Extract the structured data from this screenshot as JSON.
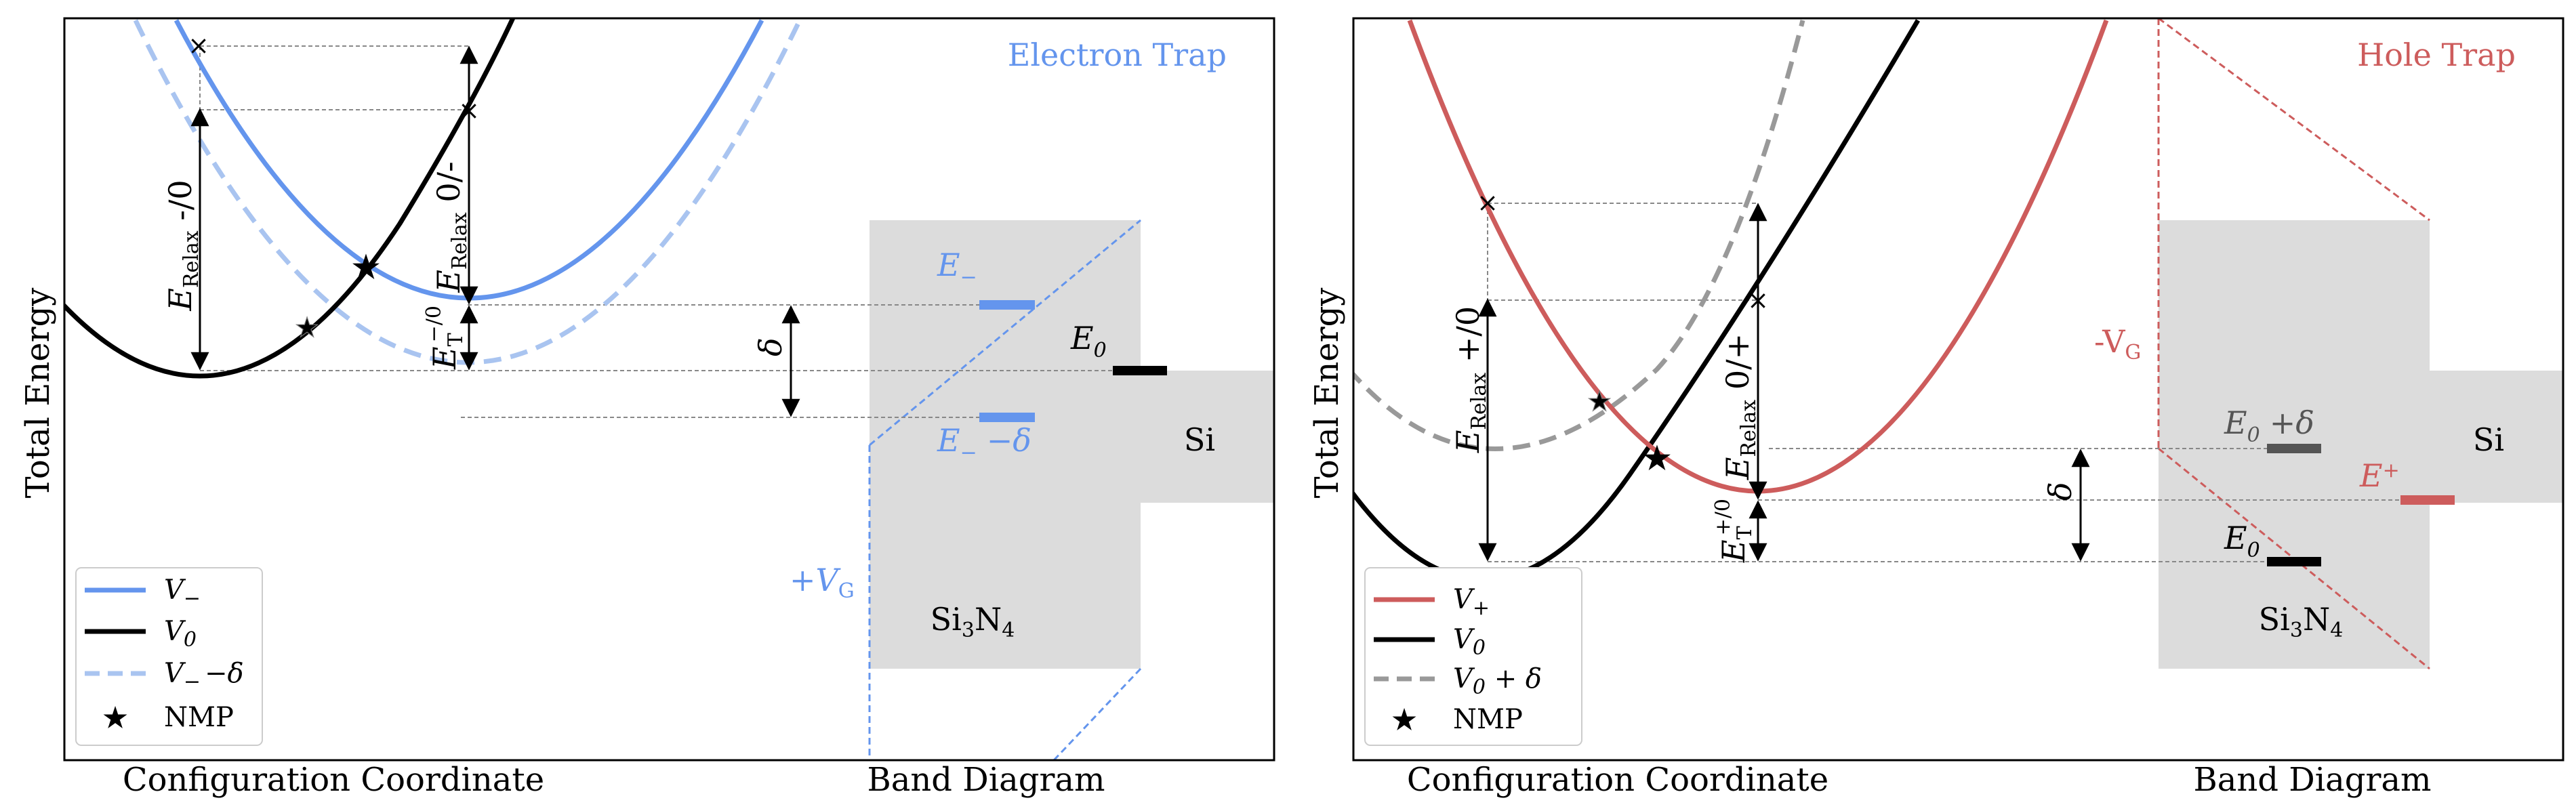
{
  "colors": {
    "electron": "#6495ED",
    "electron_light": "#A9C4F0",
    "hole": "#CD5C5C",
    "black": "#000000",
    "gray_curve": "#999999",
    "box_fill": "#DCDCDC",
    "nmp_star": "#FFD700"
  },
  "left_panel": {
    "title": "Electron Trap",
    "ylabel": "Total Energy",
    "xlabel_left": "Configuration Coordinate",
    "xlabel_right": "Band Diagram",
    "level_E_minus": "E",
    "level_E_minus_sub": "−",
    "level_E_minus_delta": "E",
    "level_E_minus_delta_sub": "−",
    "level_E_minus_delta_suffix": "−δ",
    "level_E0": "E",
    "level_E0_sub": "0",
    "delta": "δ",
    "vg": "+V",
    "vg_sub": "G",
    "si": "Si",
    "sin_main": "Si",
    "sin_sub1": "3",
    "sin_mid": "N",
    "sin_sub2": "4",
    "e_relax_a": "E",
    "e_relax_a_sub": "Relax",
    "e_relax_a_suffix": " -/0",
    "e_relax_b": "E",
    "e_relax_b_sub": "Relax",
    "e_relax_b_suffix": " 0/-",
    "et": "E",
    "et_sub": "T",
    "et_sup": "−/0",
    "legend": [
      {
        "label": "V",
        "sub": "−",
        "suffix": ""
      },
      {
        "label": "V",
        "sub": "0",
        "suffix": ""
      },
      {
        "label": "V",
        "sub": "−",
        "suffix": "−δ"
      },
      {
        "label": "NMP",
        "sub": "",
        "suffix": ""
      }
    ]
  },
  "right_panel": {
    "title": "Hole Trap",
    "ylabel": "Total Energy",
    "xlabel_left": "Configuration Coordinate",
    "xlabel_right": "Band Diagram",
    "level_E0_delta": "E",
    "level_E0_delta_sub": "0",
    "level_E0_delta_suffix": "+δ",
    "level_E_plus": "E",
    "level_E_plus_sub": "+",
    "level_E0": "E",
    "level_E0_sub": "0",
    "delta": "δ",
    "vg": "-V",
    "vg_sub": "G",
    "si": "Si",
    "sin_main": "Si",
    "sin_sub1": "3",
    "sin_mid": "N",
    "sin_sub2": "4",
    "e_relax_a": "E",
    "e_relax_a_sub": "Relax",
    "e_relax_a_suffix": " +/0",
    "e_relax_b": "E",
    "e_relax_b_sub": "Relax",
    "e_relax_b_suffix": " 0/+",
    "et": "E",
    "et_sub": "T",
    "et_sup": "+/0",
    "legend": [
      {
        "label": "V",
        "sub": "+",
        "suffix": ""
      },
      {
        "label": "V",
        "sub": "0",
        "suffix": ""
      },
      {
        "label": "V",
        "sub": "0",
        "suffix": " + δ"
      },
      {
        "label": "NMP",
        "sub": "",
        "suffix": ""
      }
    ]
  }
}
